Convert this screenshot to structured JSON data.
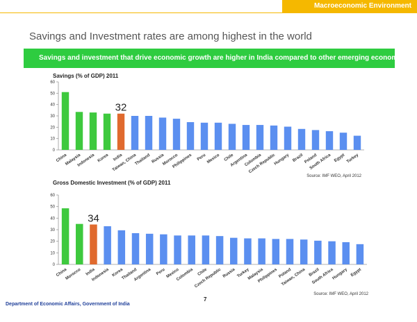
{
  "header": {
    "section_tab": "Macroeconomic Environment"
  },
  "slide": {
    "title": "Savings and Investment rates are among highest in the world",
    "banner": "Savings and investment that drive economic growth are higher in India compared to other emerging economies",
    "page_number": "7",
    "footer": "Department of Economic Affairs, Government of India"
  },
  "colors": {
    "header_tab": "#f5b800",
    "banner": "#2ecc40",
    "bar_default": "#5b8ff0",
    "bar_highlight_green": "#3ec93e",
    "bar_india": "#e06a2e"
  },
  "chart_data": [
    {
      "type": "bar",
      "title": "Savings (% of GDP) 2011",
      "categories": [
        "China",
        "Malaysia",
        "Indonesia",
        "Korea",
        "India",
        "Taiwan, China",
        "Thailand",
        "Russia",
        "Morocco",
        "Philippines",
        "Peru",
        "Mexico",
        "Chile",
        "Argentina",
        "Colombia",
        "Czech Republic",
        "Hungary",
        "Brazil",
        "Poland",
        "South Africa",
        "Egypt",
        "Turkey"
      ],
      "values": [
        51,
        33.5,
        33,
        32,
        32,
        30,
        30,
        28.5,
        27.5,
        24.5,
        24,
        24,
        23,
        22,
        22,
        21.5,
        20.5,
        18.5,
        17.5,
        16.5,
        15.2,
        12.5
      ],
      "bar_colors": [
        "green",
        "green",
        "green",
        "green",
        "india",
        "blue",
        "blue",
        "blue",
        "blue",
        "blue",
        "blue",
        "blue",
        "blue",
        "blue",
        "blue",
        "blue",
        "blue",
        "blue",
        "blue",
        "blue",
        "blue",
        "blue"
      ],
      "highlight_label": "32",
      "ylim": [
        0,
        60
      ],
      "yticks": [
        0,
        10,
        20,
        30,
        40,
        50,
        60
      ],
      "source": "Source: IMF WEO, April 2012"
    },
    {
      "type": "bar",
      "title": "Gross Domestic Investment (% of GDP) 2011",
      "categories": [
        "China",
        "Morocco",
        "India",
        "Indonesia",
        "Korea",
        "Thailand",
        "Argentina",
        "Peru",
        "Mexico",
        "Colombia",
        "Chile",
        "Czech Republic",
        "Russia",
        "Turkey",
        "Malaysia",
        "Philippines",
        "Poland",
        "Taiwan, China",
        "Brazil",
        "South Africa",
        "Hungary",
        "Egypt"
      ],
      "values": [
        48.5,
        35,
        34.5,
        33,
        29.5,
        27,
        26.5,
        26,
        25,
        25,
        25,
        24.5,
        23,
        22.5,
        22.5,
        22,
        22,
        21.5,
        20.5,
        20,
        19.2,
        17.5
      ],
      "bar_colors": [
        "green",
        "green",
        "india",
        "blue",
        "blue",
        "blue",
        "blue",
        "blue",
        "blue",
        "blue",
        "blue",
        "blue",
        "blue",
        "blue",
        "blue",
        "blue",
        "blue",
        "blue",
        "blue",
        "blue",
        "blue",
        "blue"
      ],
      "highlight_label": "34",
      "ylim": [
        0,
        60
      ],
      "yticks": [
        0,
        10,
        20,
        30,
        40,
        50,
        60
      ],
      "source": "Source: IMF WEO, April 2012"
    }
  ]
}
